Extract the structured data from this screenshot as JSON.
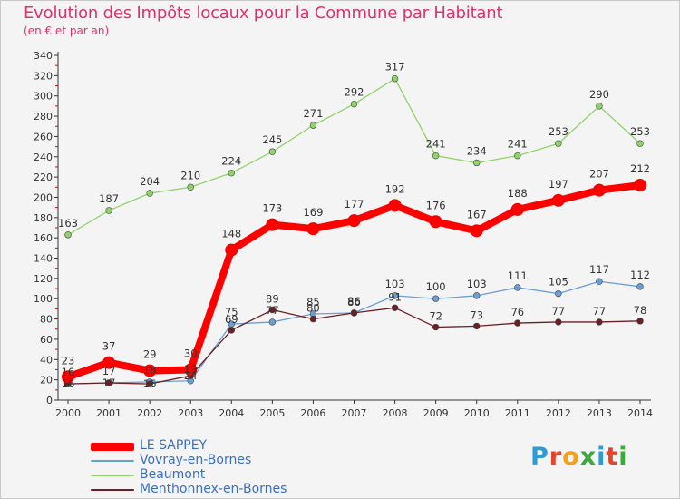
{
  "header": {
    "title": "Evolution des Impôts locaux pour la Commune par Habitant",
    "subtitle": "(en € et par an)"
  },
  "brand": {
    "text": "Proxiti",
    "colors": [
      "#2d9bd8",
      "#e8432a",
      "#f4a01c",
      "#3ba93b",
      "#2d9bd8",
      "#e8432a",
      "#3ba93b"
    ]
  },
  "chart_data": {
    "type": "line",
    "x": [
      "2000",
      "2001",
      "2002",
      "2003",
      "2004",
      "2005",
      "2006",
      "2007",
      "2008",
      "2009",
      "2010",
      "2011",
      "2012",
      "2013",
      "2014"
    ],
    "ylim": [
      0,
      340
    ],
    "yticks": [
      0,
      20,
      40,
      60,
      80,
      100,
      120,
      140,
      160,
      180,
      200,
      220,
      240,
      260,
      280,
      300,
      320,
      340
    ],
    "grid": false,
    "legend_position": "bottom-left",
    "series": [
      {
        "name": "LE SAPPEY",
        "color": "#ff0000",
        "values": [
          23,
          37,
          29,
          30,
          148,
          173,
          169,
          177,
          192,
          176,
          167,
          188,
          197,
          207,
          212
        ]
      },
      {
        "name": "Vovray-en-Bornes",
        "color": "#6a9fd4",
        "values": [
          16,
          17,
          18,
          19,
          75,
          77,
          85,
          86,
          103,
          100,
          103,
          111,
          105,
          117,
          112
        ]
      },
      {
        "name": "Beaumont",
        "color": "#8fd36a",
        "values": [
          163,
          187,
          204,
          210,
          224,
          245,
          271,
          292,
          317,
          241,
          234,
          241,
          253,
          290,
          253
        ]
      },
      {
        "name": "Menthonnex-en-Bornes",
        "color": "#6b1f24",
        "values": [
          16,
          17,
          16,
          24,
          69,
          89,
          80,
          86,
          91,
          72,
          73,
          76,
          77,
          77,
          78
        ]
      }
    ]
  }
}
